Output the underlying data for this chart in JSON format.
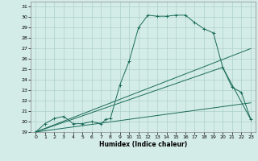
{
  "title": "",
  "xlabel": "Humidex (Indice chaleur)",
  "ylabel": "",
  "bg_color": "#d4ece7",
  "grid_color": "#aed0ca",
  "line_color": "#1a6b5a",
  "xlim": [
    -0.5,
    23.5
  ],
  "ylim": [
    19,
    31.5
  ],
  "xticks": [
    0,
    1,
    2,
    3,
    4,
    5,
    6,
    7,
    8,
    9,
    10,
    11,
    12,
    13,
    14,
    15,
    16,
    17,
    18,
    19,
    20,
    21,
    22,
    23
  ],
  "yticks": [
    19,
    20,
    21,
    22,
    23,
    24,
    25,
    26,
    27,
    28,
    29,
    30,
    31
  ],
  "series": [
    {
      "x": [
        0,
        1,
        2,
        3,
        4,
        5,
        6,
        7,
        7.5,
        8,
        9,
        10,
        11,
        12,
        13,
        14,
        15,
        16,
        17,
        18,
        19,
        20,
        21,
        22,
        23
      ],
      "y": [
        19.0,
        19.8,
        20.3,
        20.5,
        19.8,
        19.8,
        20.0,
        19.8,
        20.2,
        20.3,
        23.5,
        25.8,
        29.0,
        30.2,
        30.1,
        30.1,
        30.2,
        30.2,
        29.5,
        28.9,
        28.5,
        25.2,
        23.3,
        22.8,
        20.2
      ],
      "marker": "+"
    },
    {
      "x": [
        0,
        23
      ],
      "y": [
        19.0,
        27.0
      ],
      "marker": null
    },
    {
      "x": [
        0,
        20,
        23
      ],
      "y": [
        19.0,
        25.2,
        20.2
      ],
      "marker": null
    },
    {
      "x": [
        0,
        23
      ],
      "y": [
        19.0,
        21.8
      ],
      "marker": null
    }
  ]
}
